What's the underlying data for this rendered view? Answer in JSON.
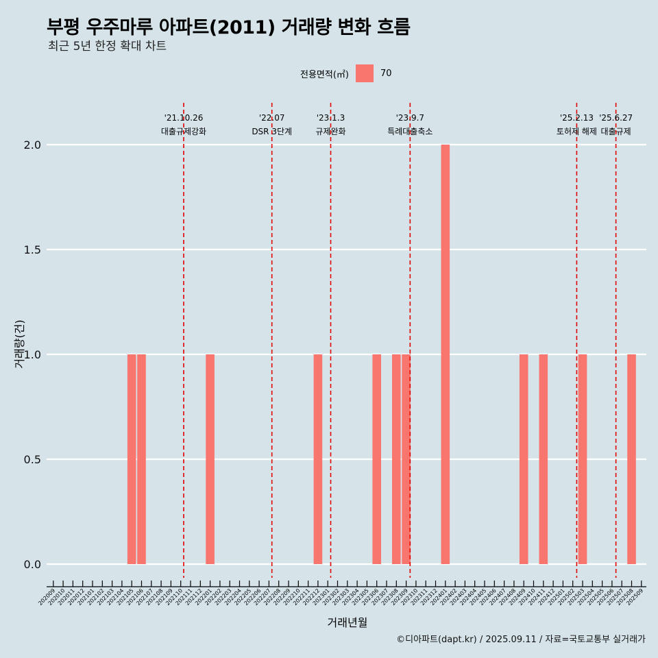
{
  "header": {
    "title": "부평 우주마루 아파트(2011) 거래량 변화 흐름",
    "subtitle": "최근 5년 한정 확대 차트"
  },
  "legend": {
    "title": "전용면적(㎡)",
    "entries": [
      {
        "label": "70",
        "color": "#f8766d"
      }
    ]
  },
  "caption": "©디아파트(dapt.kr) / 2025.09.11 / 자료=국토교통부 실거래가",
  "chart_data": {
    "type": "bar",
    "xlabel": "거래년월",
    "ylabel": "거래량(건)",
    "ylim": [
      0,
      2
    ],
    "yticks": [
      "0.0",
      "0.5",
      "1.0",
      "1.5",
      "2.0"
    ],
    "bar_color": "#f8766d",
    "categories": [
      "202009",
      "202010",
      "202011",
      "202012",
      "202101",
      "202102",
      "202103",
      "202104",
      "202105",
      "202106",
      "202107",
      "202108",
      "202109",
      "202110",
      "202111",
      "202112",
      "202201",
      "202202",
      "202203",
      "202204",
      "202205",
      "202206",
      "202207",
      "202208",
      "202209",
      "202210",
      "202211",
      "202212",
      "202301",
      "202302",
      "202303",
      "202304",
      "202305",
      "202306",
      "202307",
      "202308",
      "202309",
      "202310",
      "202311",
      "202312",
      "202401",
      "202402",
      "202403",
      "202404",
      "202405",
      "202406",
      "202407",
      "202408",
      "202409",
      "202410",
      "202411",
      "202412",
      "202501",
      "202502",
      "202503",
      "202504",
      "202505",
      "202506",
      "202507",
      "202508",
      "202509"
    ],
    "series": [
      {
        "name": "70",
        "values": [
          0,
          0,
          0,
          0,
          0,
          0,
          0,
          0,
          1,
          1,
          0,
          0,
          0,
          0,
          0,
          0,
          1,
          0,
          0,
          0,
          0,
          0,
          0,
          0,
          0,
          0,
          0,
          1,
          0,
          0,
          0,
          0,
          0,
          1,
          0,
          1,
          1,
          0,
          0,
          0,
          2,
          0,
          0,
          0,
          0,
          0,
          0,
          0,
          1,
          0,
          1,
          0,
          0,
          0,
          1,
          0,
          0,
          0,
          0,
          1,
          0
        ]
      }
    ],
    "annotations": [
      {
        "date": "'21.10.26",
        "label": "대출규제강화",
        "x": 13.3
      },
      {
        "date": "'22.07",
        "label": "DSR 3단계",
        "x": 22.3
      },
      {
        "date": "'23.1.3",
        "label": "규제완화",
        "x": 28.3
      },
      {
        "date": "'23.9.7",
        "label": "특례대출축소",
        "x": 36.4
      },
      {
        "date": "'25.2.13",
        "label": "토허제 해제",
        "x": 53.4
      },
      {
        "date": "'25.6.27",
        "label": "대출규제",
        "x": 57.4
      }
    ],
    "grid": "horizontal",
    "legend_position": "top"
  }
}
